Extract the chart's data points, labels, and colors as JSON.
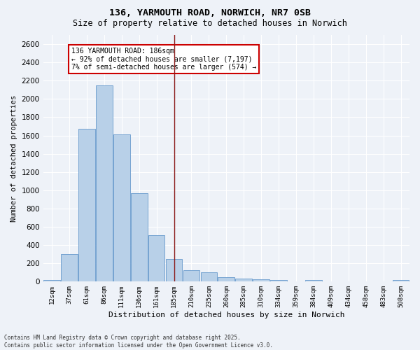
{
  "title1": "136, YARMOUTH ROAD, NORWICH, NR7 0SB",
  "title2": "Size of property relative to detached houses in Norwich",
  "xlabel": "Distribution of detached houses by size in Norwich",
  "ylabel": "Number of detached properties",
  "categories": [
    "12sqm",
    "37sqm",
    "61sqm",
    "86sqm",
    "111sqm",
    "136sqm",
    "161sqm",
    "185sqm",
    "210sqm",
    "235sqm",
    "260sqm",
    "285sqm",
    "310sqm",
    "334sqm",
    "359sqm",
    "384sqm",
    "409sqm",
    "434sqm",
    "458sqm",
    "483sqm",
    "508sqm"
  ],
  "values": [
    20,
    300,
    1670,
    2150,
    1615,
    970,
    510,
    245,
    125,
    100,
    48,
    30,
    28,
    18,
    5,
    20,
    3,
    0,
    5,
    0,
    20
  ],
  "bar_color": "#b8d0e8",
  "bar_edge_color": "#6699cc",
  "vline_color": "#8b1a1a",
  "annotation_text": "136 YARMOUTH ROAD: 186sqm\n← 92% of detached houses are smaller (7,197)\n7% of semi-detached houses are larger (574) →",
  "annotation_box_color": "#ffffff",
  "annotation_box_edge": "#cc0000",
  "ylim": [
    0,
    2700
  ],
  "yticks": [
    0,
    200,
    400,
    600,
    800,
    1000,
    1200,
    1400,
    1600,
    1800,
    2000,
    2200,
    2400,
    2600
  ],
  "footer1": "Contains HM Land Registry data © Crown copyright and database right 2025.",
  "footer2": "Contains public sector information licensed under the Open Government Licence v3.0.",
  "bg_color": "#eef2f8",
  "grid_color": "#ffffff"
}
